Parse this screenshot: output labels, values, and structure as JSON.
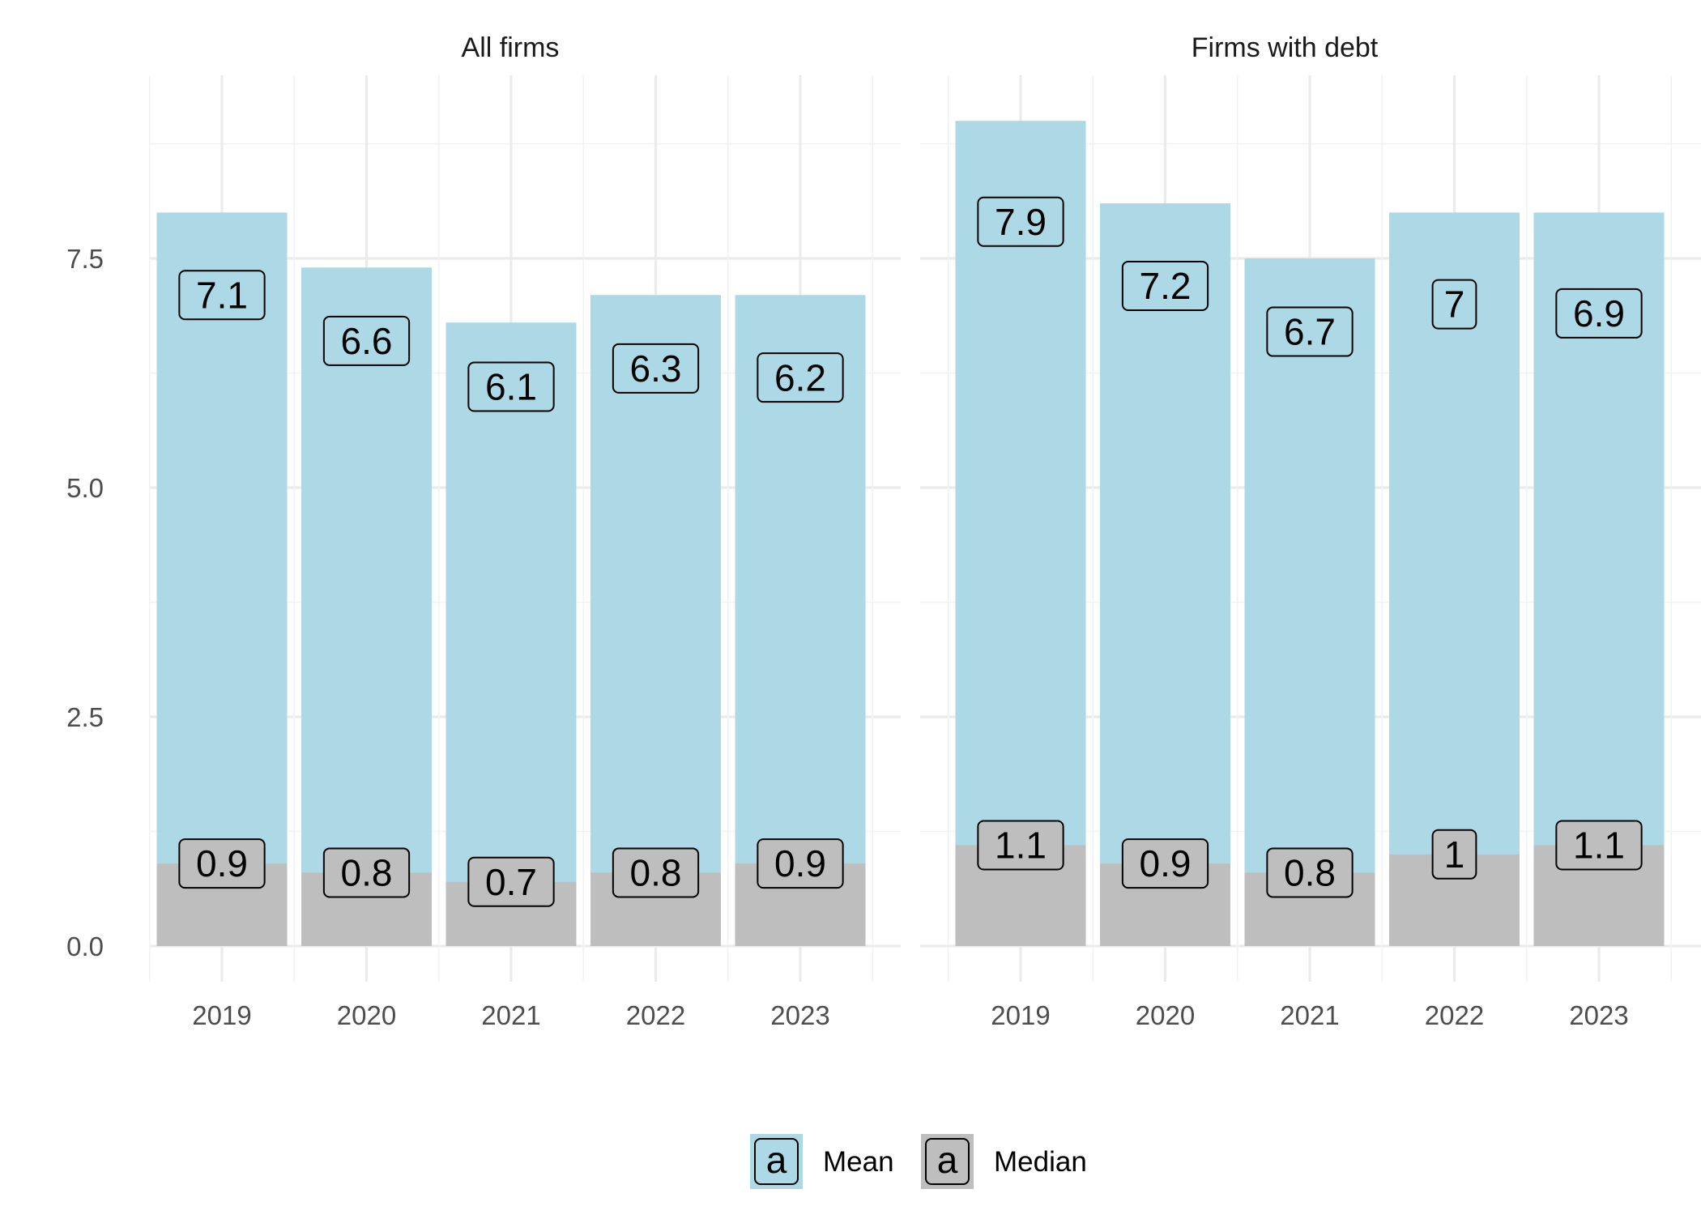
{
  "chart_data": {
    "type": "bar",
    "layout": "faceted",
    "bar_mode": "overlay",
    "grid": true,
    "legend_position": "bottom",
    "colors": {
      "mean": "#add8e6",
      "median": "#bebebe"
    },
    "ylim": [
      0,
      9.4
    ],
    "y_ticks": [
      "0.0",
      "2.5",
      "5.0",
      "7.5"
    ],
    "y_tick_values": [
      0,
      2.5,
      5,
      7.5
    ],
    "categories": [
      "2019",
      "2020",
      "2021",
      "2022",
      "2023"
    ],
    "legend": [
      {
        "key": "mean",
        "symbol": "a",
        "label": "Mean"
      },
      {
        "key": "median",
        "symbol": "a",
        "label": "Median"
      }
    ],
    "panels": [
      {
        "title": "All firms",
        "series": [
          {
            "name": "Mean",
            "key": "mean",
            "values": [
              8.0,
              7.4,
              6.8,
              7.1,
              7.1
            ],
            "labels": [
              "7.1",
              "6.6",
              "6.1",
              "6.3",
              "6.2"
            ]
          },
          {
            "name": "Median",
            "key": "median",
            "values": [
              0.9,
              0.8,
              0.7,
              0.8,
              0.9
            ],
            "labels": [
              "0.9",
              "0.8",
              "0.7",
              "0.8",
              "0.9"
            ]
          }
        ]
      },
      {
        "title": "Firms with debt",
        "series": [
          {
            "name": "Mean",
            "key": "mean",
            "values": [
              9.0,
              8.1,
              7.5,
              8.0,
              8.0
            ],
            "labels": [
              "7.9",
              "7.2",
              "6.7",
              "7",
              "6.9"
            ]
          },
          {
            "name": "Median",
            "key": "median",
            "values": [
              1.1,
              0.9,
              0.8,
              1.0,
              1.1
            ],
            "labels": [
              "1.1",
              "0.9",
              "0.8",
              "1",
              "1.1"
            ]
          }
        ]
      }
    ]
  }
}
